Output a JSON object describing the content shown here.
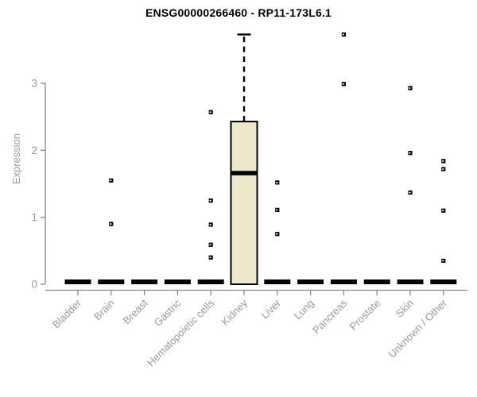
{
  "chart_data": {
    "type": "boxplot",
    "title": "ENSG00000266460 - RP11-173L6.1",
    "ylabel": "Expression",
    "xlabel": "",
    "categories": [
      "Bladder",
      "Brain",
      "Breast",
      "Gastric",
      "Hematopoietic cells",
      "Kidney",
      "Liver",
      "Lung",
      "Pancreas",
      "Prostate",
      "Skin",
      "Unknown / Other"
    ],
    "yticks": [
      0,
      1,
      2,
      3
    ],
    "ylim": [
      -0.08,
      3.85
    ],
    "grid": false,
    "legend": null,
    "boxes": [
      {
        "category": "Bladder",
        "q1": 0,
        "median": 0,
        "q3": 0,
        "whisker_low": 0,
        "whisker_high": 0,
        "outliers": []
      },
      {
        "category": "Brain",
        "q1": 0,
        "median": 0,
        "q3": 0,
        "whisker_low": 0,
        "whisker_high": 0,
        "outliers": [
          1.55,
          0.9
        ]
      },
      {
        "category": "Breast",
        "q1": 0,
        "median": 0,
        "q3": 0,
        "whisker_low": 0,
        "whisker_high": 0,
        "outliers": []
      },
      {
        "category": "Gastric",
        "q1": 0,
        "median": 0,
        "q3": 0,
        "whisker_low": 0,
        "whisker_high": 0,
        "outliers": []
      },
      {
        "category": "Hematopoietic cells",
        "q1": 0,
        "median": 0,
        "q3": 0,
        "whisker_low": 0,
        "whisker_high": 0,
        "outliers": [
          2.57,
          1.25,
          0.89,
          0.59,
          0.4
        ]
      },
      {
        "category": "Kidney",
        "q1": 0,
        "median": 1.66,
        "q3": 2.43,
        "whisker_low": 0,
        "whisker_high": 3.73,
        "outliers": []
      },
      {
        "category": "Liver",
        "q1": 0,
        "median": 0,
        "q3": 0,
        "whisker_low": 0,
        "whisker_high": 0,
        "outliers": [
          1.52,
          1.11,
          0.75
        ]
      },
      {
        "category": "Lung",
        "q1": 0,
        "median": 0,
        "q3": 0,
        "whisker_low": 0,
        "whisker_high": 0,
        "outliers": []
      },
      {
        "category": "Pancreas",
        "q1": 0,
        "median": 0,
        "q3": 0,
        "whisker_low": 0,
        "whisker_high": 0,
        "outliers": [
          3.73,
          2.99
        ]
      },
      {
        "category": "Prostate",
        "q1": 0,
        "median": 0,
        "q3": 0,
        "whisker_low": 0,
        "whisker_high": 0,
        "outliers": []
      },
      {
        "category": "Skin",
        "q1": 0,
        "median": 0,
        "q3": 0,
        "whisker_low": 0,
        "whisker_high": 0,
        "outliers": [
          2.93,
          1.96,
          1.37
        ]
      },
      {
        "category": "Unknown / Other",
        "q1": 0,
        "median": 0,
        "q3": 0,
        "whisker_low": 0,
        "whisker_high": 0,
        "outliers": [
          1.84,
          1.72,
          1.1,
          0.35
        ]
      }
    ],
    "colors": {
      "box_fill": "#EDE7CC",
      "box_border": "#000000",
      "median": "#000000",
      "outlier": "#000000",
      "outlier_center": "#ffffff",
      "axis_line": "#8a8a8a",
      "tick_label": "#9a9a9a",
      "title": "#000000"
    }
  }
}
